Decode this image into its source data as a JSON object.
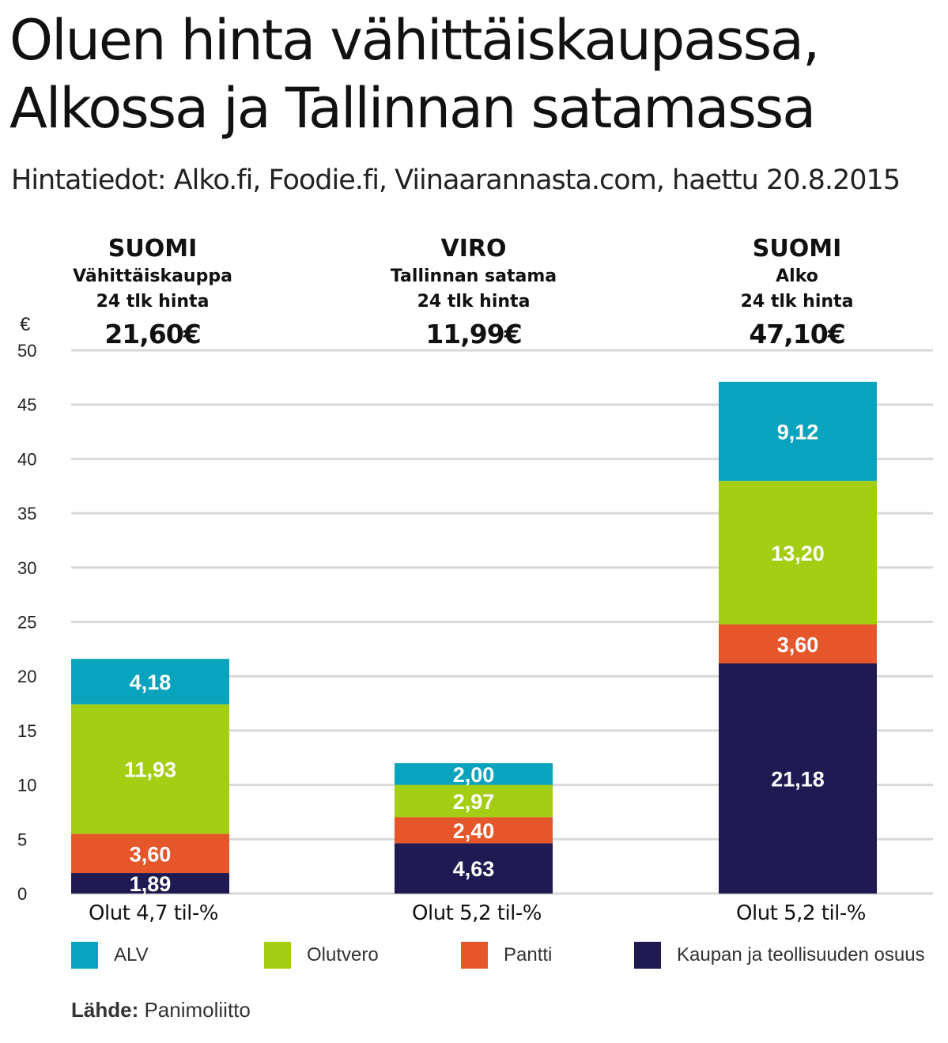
{
  "title": "Oluen hinta vähittäiskaupassa, Alkossa ja Tallinnan satamassa",
  "subtitle": "Hintatiedot: Alko.fi, Foodie.fi, Viinaarannasta.com, haettu 20.8.2015",
  "source": {
    "label": "Lähde:",
    "value": "Panimoliitto"
  },
  "colors": {
    "ALV": "#0aa3bd",
    "Olutvero": "#a3ce14",
    "Pantti": "#e5572a",
    "Kaupan": "#201a52",
    "grid": "#d9d9d9"
  },
  "legend": [
    {
      "name": "ALV",
      "color": "#0aa3bd"
    },
    {
      "name": "Olutvero",
      "color": "#a3ce14"
    },
    {
      "name": "Pantti",
      "color": "#e5572a"
    },
    {
      "name": "Kaupan ja teollisuuden osuus",
      "color": "#201a52"
    }
  ],
  "chart_data": {
    "type": "bar",
    "stacked": true,
    "ylabel": "€",
    "ylim": [
      0,
      50
    ],
    "yticks": [
      0,
      5,
      10,
      15,
      20,
      25,
      30,
      35,
      40,
      45,
      50
    ],
    "grid": true,
    "legend_position": "bottom",
    "categories": [
      "Olut 4,7 til-%",
      "Olut 5,2 til-%",
      "Olut 5,2 til-%"
    ],
    "column_headers": [
      {
        "country": "SUOMI",
        "line1": "Vähittäiskauppa",
        "line2": "24 tlk hinta",
        "total": "21,60€"
      },
      {
        "country": "VIRO",
        "line1": "Tallinnan satama",
        "line2": "24 tlk hinta",
        "total": "11,99€"
      },
      {
        "country": "SUOMI",
        "line1": "Alko",
        "line2": "24 tlk hinta",
        "total": "47,10€"
      }
    ],
    "series": [
      {
        "name": "Kaupan ja teollisuuden osuus",
        "values": [
          1.89,
          4.63,
          21.18
        ],
        "labels": [
          "1,89",
          "4,63",
          "21,18"
        ]
      },
      {
        "name": "Pantti",
        "values": [
          3.6,
          2.4,
          3.6
        ],
        "labels": [
          "3,60",
          "2,40",
          "3,60"
        ]
      },
      {
        "name": "Olutvero",
        "values": [
          11.93,
          2.97,
          13.2
        ],
        "labels": [
          "11,93",
          "2,97",
          "13,20"
        ]
      },
      {
        "name": "ALV",
        "values": [
          4.18,
          2.0,
          9.12
        ],
        "labels": [
          "4,18",
          "2,00",
          "9,12"
        ]
      }
    ]
  }
}
